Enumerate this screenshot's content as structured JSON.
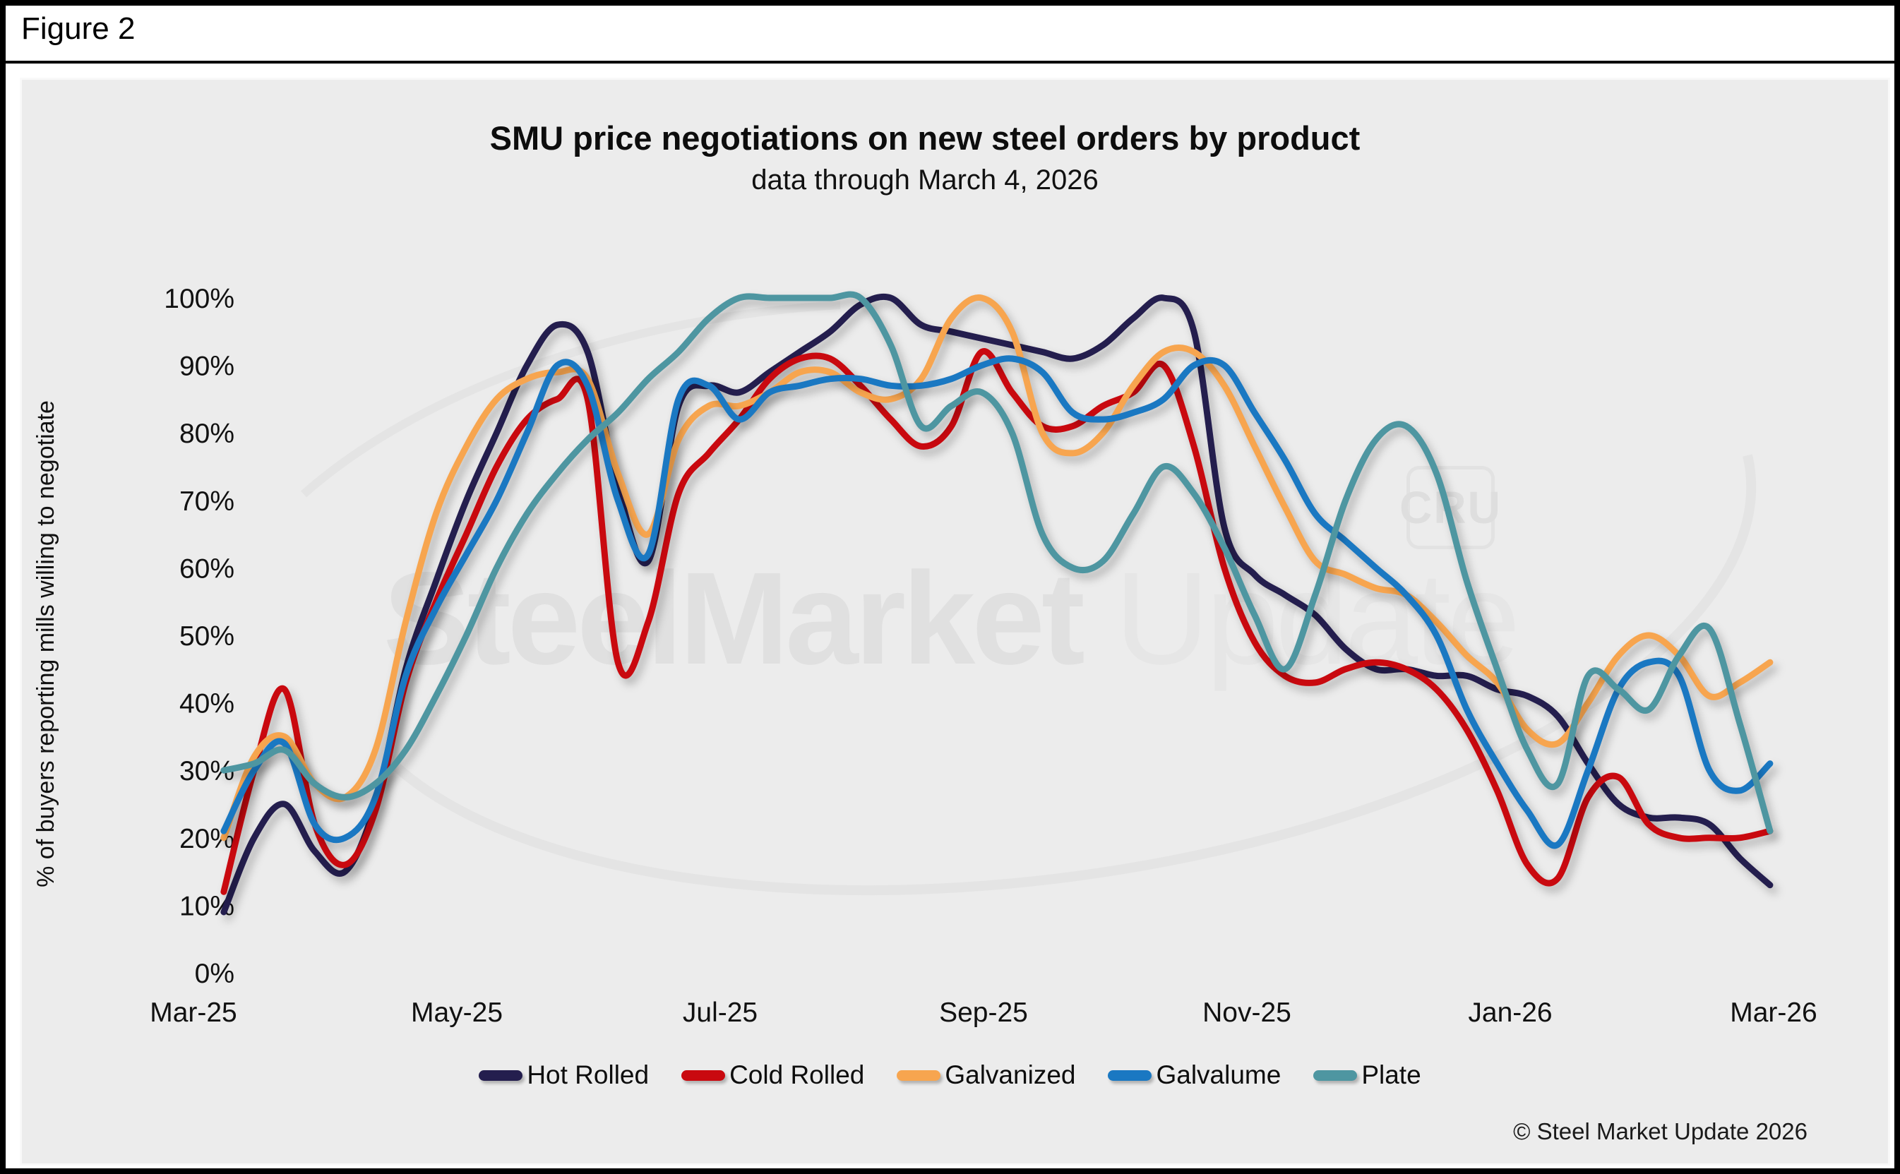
{
  "figure_label": "Figure 2",
  "copyright": "© Steel Market Update 2026",
  "watermark": {
    "text_main": "SteelMarket",
    "text_secondary": " Update",
    "badge": "CRU"
  },
  "chart_data": {
    "type": "line",
    "title": "SMU price negotiations on new steel orders by product",
    "subtitle": "data through March 4, 2026",
    "xlabel": "",
    "ylabel": "% of buyers reporting mills willing to negotiate",
    "ylim": [
      0,
      100
    ],
    "grid": false,
    "legend_position": "bottom",
    "x_tick_labels": [
      "Mar-25",
      "May-25",
      "Jul-25",
      "Sep-25",
      "Nov-25",
      "Jan-26",
      "Mar-26"
    ],
    "y_tick_labels": [
      "0%",
      "10%",
      "20%",
      "30%",
      "40%",
      "50%",
      "60%",
      "70%",
      "80%",
      "90%",
      "100%"
    ],
    "x_unit": "weekly observations, Mar-2025 through Mar-4-2026",
    "series": [
      {
        "name": "Hot Rolled",
        "color": "#241E4E",
        "values": [
          9,
          20,
          25,
          18,
          15,
          25,
          45,
          58,
          70,
          80,
          90,
          96,
          92,
          72,
          61,
          84,
          87,
          86,
          89,
          92,
          95,
          99,
          100,
          96,
          95,
          94,
          93,
          92,
          91,
          93,
          97,
          100,
          95,
          66,
          59,
          56,
          53,
          48,
          45,
          45,
          44,
          44,
          42,
          41,
          38,
          31,
          25,
          23,
          23,
          22,
          17,
          13
        ]
      },
      {
        "name": "Cold Rolled",
        "color": "#C9090F",
        "values": [
          12,
          30,
          42,
          22,
          16,
          24,
          43,
          55,
          65,
          75,
          82,
          85,
          85,
          46,
          52,
          71,
          77,
          82,
          88,
          91,
          91,
          87,
          82,
          78,
          81,
          92,
          86,
          81,
          81,
          84,
          86,
          90,
          78,
          60,
          49,
          44,
          43,
          45,
          46,
          45,
          42,
          36,
          27,
          16,
          14,
          26,
          29,
          22,
          20,
          20,
          20,
          21
        ]
      },
      {
        "name": "Galvanized",
        "color": "#F7A54F",
        "values": [
          20,
          32,
          35,
          28,
          26,
          33,
          52,
          68,
          78,
          85,
          88,
          89,
          88,
          74,
          65,
          79,
          84,
          84,
          86,
          89,
          89,
          86,
          85,
          88,
          97,
          100,
          95,
          80,
          77,
          80,
          87,
          92,
          92,
          87,
          78,
          69,
          61,
          59,
          57,
          56,
          52,
          47,
          43,
          36,
          34,
          40,
          47,
          50,
          47,
          41,
          43,
          46
        ]
      },
      {
        "name": "Galvalume",
        "color": "#1A78C2",
        "values": [
          21,
          30,
          34,
          22,
          20,
          26,
          44,
          54,
          62,
          70,
          80,
          90,
          87,
          70,
          62,
          85,
          87,
          82,
          86,
          87,
          88,
          88,
          87,
          87,
          88,
          90,
          91,
          89,
          83,
          82,
          83,
          85,
          90,
          90,
          83,
          76,
          68,
          64,
          60,
          56,
          50,
          39,
          31,
          24,
          19,
          30,
          42,
          46,
          44,
          30,
          27,
          31
        ]
      },
      {
        "name": "Plate",
        "color": "#4E96A1",
        "values": [
          30,
          31,
          33,
          28,
          26,
          28,
          33,
          41,
          50,
          60,
          68,
          74,
          79,
          83,
          88,
          92,
          97,
          100,
          100,
          100,
          100,
          100,
          93,
          81,
          84,
          86,
          80,
          65,
          60,
          61,
          68,
          75,
          71,
          63,
          53,
          45,
          56,
          70,
          79,
          81,
          74,
          58,
          45,
          33,
          28,
          44,
          42,
          39,
          47,
          51,
          37,
          21
        ]
      }
    ]
  }
}
